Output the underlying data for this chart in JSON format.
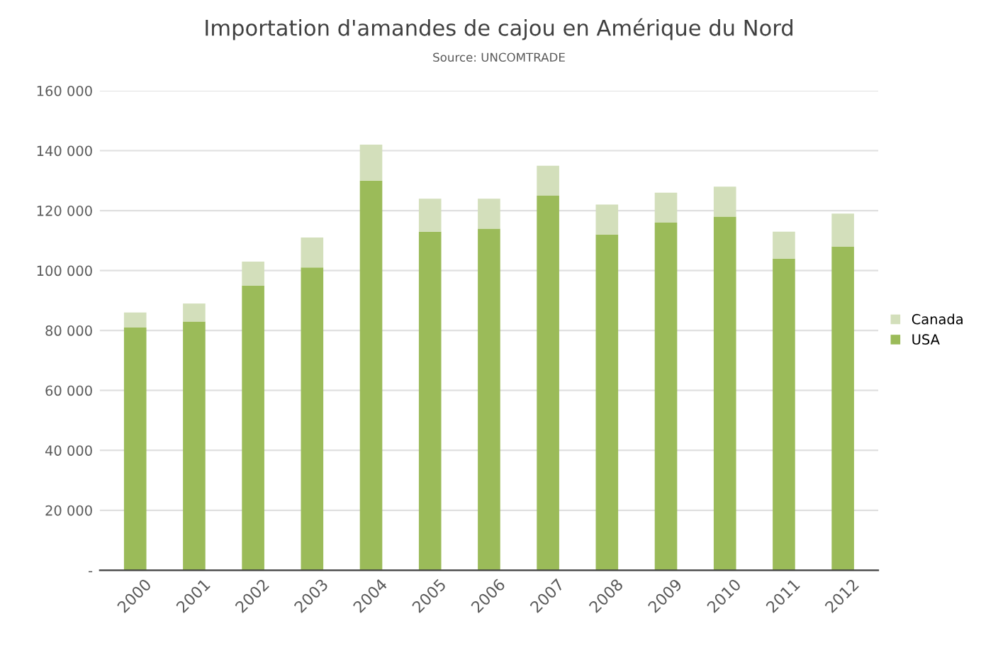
{
  "chart_data": {
    "type": "bar",
    "stacked": true,
    "title": "Importation d'amandes de cajou en Amérique du Nord",
    "subtitle": "Source: UNCOMTRADE",
    "categories": [
      "2000",
      "2001",
      "2002",
      "2003",
      "2004",
      "2005",
      "2006",
      "2007",
      "2008",
      "2009",
      "2010",
      "2011",
      "2012"
    ],
    "series": [
      {
        "name": "USA",
        "color": "#9bbb59",
        "values": [
          81000,
          83000,
          95000,
          101000,
          130000,
          113000,
          114000,
          125000,
          112000,
          116000,
          118000,
          104000,
          108000
        ]
      },
      {
        "name": "Canada",
        "color": "#d3dfbb",
        "values": [
          5000,
          6000,
          8000,
          10000,
          12000,
          11000,
          10000,
          10000,
          10000,
          10000,
          10000,
          9000,
          11000
        ]
      }
    ],
    "ylim": [
      0,
      160000
    ],
    "yticks": [
      {
        "value": 0,
        "label": "-"
      },
      {
        "value": 20000,
        "label": "20 000"
      },
      {
        "value": 40000,
        "label": "40 000"
      },
      {
        "value": 60000,
        "label": "60 000"
      },
      {
        "value": 80000,
        "label": "80 000"
      },
      {
        "value": 100000,
        "label": "100 000"
      },
      {
        "value": 120000,
        "label": "120 000"
      },
      {
        "value": 140000,
        "label": "140 000"
      },
      {
        "value": 160000,
        "label": "160 000"
      }
    ],
    "grid": "y",
    "legend": "right"
  }
}
